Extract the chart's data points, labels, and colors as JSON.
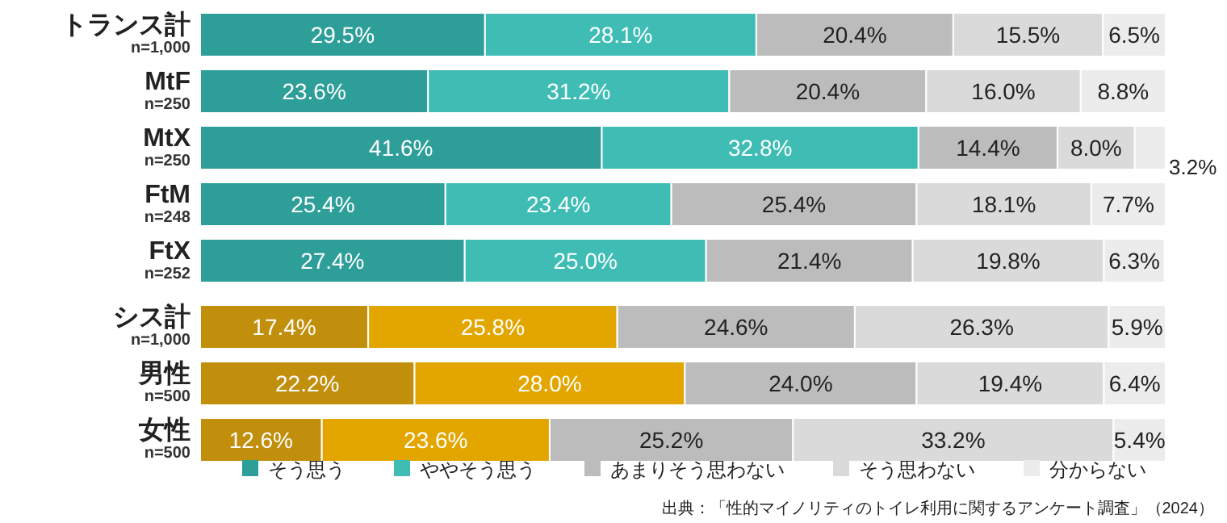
{
  "chart_data": {
    "type": "bar",
    "orientation": "horizontal",
    "stacked": true,
    "xlim": [
      0,
      100
    ],
    "legend": "bottom",
    "categories": [
      "トランス計\nn=1,000",
      "MtF\nn=250",
      "MtX\nn=250",
      "FtM\nn=248",
      "FtX\nn=252",
      "シス計\nn=1,000",
      "男性\nn=500",
      "女性\nn=500"
    ],
    "series": [
      {
        "name": "そう思う",
        "color": "#2e9e99",
        "colors": [
          "#2e9e99",
          "#2e9e99",
          "#2e9e99",
          "#2e9e99",
          "#2e9e99",
          "#c28f0c",
          "#c28f0c",
          "#c28f0c"
        ],
        "values": [
          29.5,
          23.6,
          41.6,
          25.4,
          27.4,
          17.4,
          22.2,
          12.6
        ],
        "value_labels": [
          "29.5%",
          "23.6%",
          "41.6%",
          "25.4%",
          "27.4%",
          "17.4%",
          "22.2%",
          "12.6%"
        ]
      },
      {
        "name": "ややそう思う",
        "color": "#3fbdb5",
        "colors": [
          "#3fbdb5",
          "#3fbdb5",
          "#3fbdb5",
          "#3fbdb5",
          "#3fbdb5",
          "#e3a600",
          "#e3a600",
          "#e3a600"
        ],
        "values": [
          28.1,
          31.2,
          32.8,
          23.4,
          25.0,
          25.8,
          28.0,
          23.6
        ],
        "value_labels": [
          "28.1%",
          "31.2%",
          "32.8%",
          "23.4%",
          "25.0%",
          "25.8%",
          "28.0%",
          "23.6%"
        ]
      },
      {
        "name": "あまりそう思わない",
        "color": "#bcbcbc",
        "values": [
          20.4,
          20.4,
          14.4,
          25.4,
          21.4,
          24.6,
          24.0,
          25.2
        ],
        "value_labels": [
          "20.4%",
          "20.4%",
          "14.4%",
          "25.4%",
          "21.4%",
          "24.6%",
          "24.0%",
          "25.2%"
        ]
      },
      {
        "name": "そう思わない",
        "color": "#dadada",
        "values": [
          15.5,
          16.0,
          8.0,
          18.1,
          19.8,
          26.3,
          19.4,
          33.2
        ],
        "value_labels": [
          "15.5%",
          "16.0%",
          "8.0%",
          "18.1%",
          "19.8%",
          "26.3%",
          "19.4%",
          "33.2%"
        ]
      },
      {
        "name": "分からない",
        "color": "#ececec",
        "values": [
          6.5,
          8.8,
          3.2,
          7.7,
          6.3,
          5.9,
          6.4,
          5.4
        ],
        "value_labels": [
          "6.5%",
          "8.8%",
          "3.2%",
          "7.7%",
          "6.3%",
          "5.9%",
          "6.4%",
          "5.4%"
        ]
      }
    ],
    "annotations": [
      "出典：「性的マイノリティのトイレ利用に関するアンケート調査」（2024）"
    ]
  }
}
